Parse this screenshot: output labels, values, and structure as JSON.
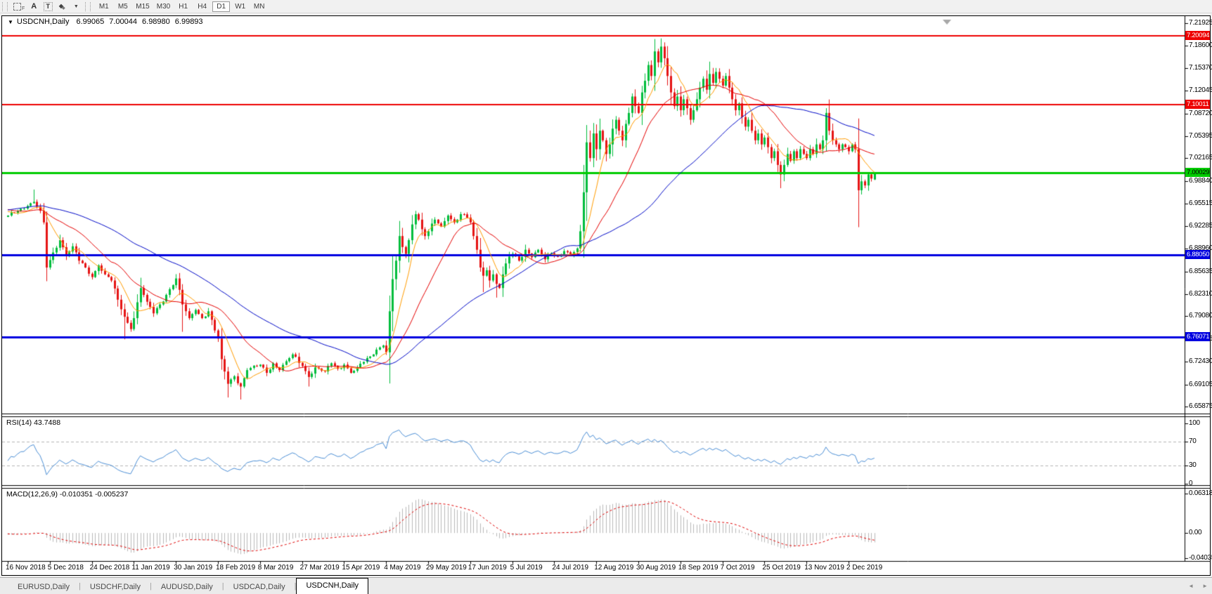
{
  "toolbar": {
    "tools": [
      {
        "name": "chart-window-icon",
        "kind": "dashbox",
        "glyph": "F"
      },
      {
        "name": "cursor-tool-icon",
        "kind": "glyph",
        "glyph": "A"
      },
      {
        "name": "text-label-tool-icon",
        "kind": "boxglyph",
        "glyph": "T"
      },
      {
        "name": "arrows-tool-icon",
        "kind": "diamonds",
        "glyph": "◆"
      },
      {
        "name": "arrows-dropdown-caret-icon",
        "kind": "caret",
        "glyph": "▼"
      }
    ],
    "timeframes": [
      {
        "label": "M1",
        "active": false
      },
      {
        "label": "M5",
        "active": false
      },
      {
        "label": "M15",
        "active": false
      },
      {
        "label": "M30",
        "active": false
      },
      {
        "label": "H1",
        "active": false
      },
      {
        "label": "H4",
        "active": false
      },
      {
        "label": "D1",
        "active": true
      },
      {
        "label": "W1",
        "active": false
      },
      {
        "label": "MN",
        "active": false
      }
    ]
  },
  "chart": {
    "title": {
      "dropdown_glyph": "▼",
      "symbol": "USDCNH,Daily",
      "open": "6.99065",
      "high": "7.00044",
      "low": "6.98980",
      "close": "6.99893"
    },
    "y_axis_ticks": [
      "7.21925",
      "7.18600",
      "7.15370",
      "7.12045",
      "7.08720",
      "7.05395",
      "7.02165",
      "6.98840",
      "6.95515",
      "6.92285",
      "6.88960",
      "6.85635",
      "6.82310",
      "6.79080",
      "6.75755",
      "6.72430",
      "6.69105",
      "6.65875"
    ],
    "x_axis_dates": [
      "16 Nov 2018",
      "5 Dec 2018",
      "24 Dec 2018",
      "11 Jan 2019",
      "30 Jan 2019",
      "18 Feb 2019",
      "8 Mar 2019",
      "27 Mar 2019",
      "15 Apr 2019",
      "4 May 2019",
      "29 May 2019",
      "17 Jun 2019",
      "5 Jul 2019",
      "24 Jul 2019",
      "12 Aug 2019",
      "30 Aug 2019",
      "18 Sep 2019",
      "7 Oct 2019",
      "25 Oct 2019",
      "13 Nov 2019",
      "2 Dec 2019"
    ],
    "levels": [
      {
        "price": 7.20094,
        "label": "7.20094",
        "color": "#ee0000",
        "text_color": "#ffffff",
        "thickness": 2
      },
      {
        "price": 7.10011,
        "label": "7.10011",
        "color": "#ee0000",
        "text_color": "#ffffff",
        "thickness": 2
      },
      {
        "price": 7.00029,
        "label": "7.00029",
        "color": "#00cc00",
        "text_color": "#000000",
        "thickness": 3
      },
      {
        "price": 6.8805,
        "label": "6.88050",
        "color": "#0000e0",
        "text_color": "#ffffff",
        "thickness": 3
      },
      {
        "price": 6.76071,
        "label": "6.76071",
        "color": "#0000e0",
        "text_color": "#ffffff",
        "thickness": 3
      }
    ],
    "shift_marker_color": "#a8a8a8"
  },
  "rsi": {
    "label": "RSI(14) 43.7488",
    "ticks": [
      "100",
      "70",
      "30",
      "0"
    ],
    "guide_levels": [
      70,
      30
    ],
    "line_color": "#4c8fd6",
    "guide_color": "#b5b5b5"
  },
  "macd": {
    "label": "MACD(12,26,9) -0.010351 -0.005237",
    "ticks": [
      "0.063184",
      "0.00",
      "-0.040355"
    ],
    "histogram_color": "#b9b9b9",
    "signal_color": "#e00000"
  },
  "chart_data": {
    "type": "candlestick",
    "symbol": "USDCNH",
    "timeframe": "Daily",
    "title_ohlc": {
      "open": 6.99065,
      "high": 7.00044,
      "low": 6.9898,
      "close": 6.99893
    },
    "y_range": [
      6.65875,
      7.21925
    ],
    "rsi_range": [
      0,
      100
    ],
    "macd_range": [
      -0.040355,
      0.063184
    ],
    "bars": 269,
    "bars_per_tick": 13,
    "up_color": "#00bd3c",
    "down_color": "#e51414",
    "moving_averages": [
      {
        "period": 8,
        "color": "#ff9c00"
      },
      {
        "period": 21,
        "color": "#e60000"
      },
      {
        "period": 55,
        "color": "#0008c8"
      }
    ],
    "rsi_period": 14,
    "macd_params": [
      12,
      26,
      9
    ],
    "levels": [
      7.20094,
      7.10011,
      7.00029,
      6.8805,
      6.76071
    ],
    "close_anchors": [
      [
        -60,
        6.885
      ],
      [
        -48,
        6.92
      ],
      [
        -36,
        6.958
      ],
      [
        -24,
        6.972
      ],
      [
        -12,
        6.94
      ],
      [
        -6,
        6.952
      ],
      [
        -1,
        6.936
      ],
      [
        0,
        6.938
      ],
      [
        3,
        6.945
      ],
      [
        6,
        6.952
      ],
      [
        8,
        6.958
      ],
      [
        10,
        6.945
      ],
      [
        11,
        6.928
      ],
      [
        12,
        6.862
      ],
      [
        14,
        6.884
      ],
      [
        16,
        6.902
      ],
      [
        18,
        6.88
      ],
      [
        20,
        6.893
      ],
      [
        22,
        6.872
      ],
      [
        24,
        6.862
      ],
      [
        26,
        6.848
      ],
      [
        28,
        6.865
      ],
      [
        30,
        6.852
      ],
      [
        32,
        6.843
      ],
      [
        34,
        6.815
      ],
      [
        36,
        6.79
      ],
      [
        38,
        6.772
      ],
      [
        39,
        6.788
      ],
      [
        41,
        6.832
      ],
      [
        43,
        6.812
      ],
      [
        45,
        6.795
      ],
      [
        47,
        6.808
      ],
      [
        49,
        6.822
      ],
      [
        52,
        6.846
      ],
      [
        54,
        6.808
      ],
      [
        56,
        6.788
      ],
      [
        58,
        6.8
      ],
      [
        60,
        6.788
      ],
      [
        62,
        6.798
      ],
      [
        64,
        6.77
      ],
      [
        65,
        6.758
      ],
      [
        66,
        6.728
      ],
      [
        68,
        6.692
      ],
      [
        70,
        6.703
      ],
      [
        72,
        6.688
      ],
      [
        74,
        6.712
      ],
      [
        78,
        6.72
      ],
      [
        80,
        6.708
      ],
      [
        82,
        6.722
      ],
      [
        84,
        6.712
      ],
      [
        86,
        6.725
      ],
      [
        88,
        6.735
      ],
      [
        91,
        6.718
      ],
      [
        93,
        6.702
      ],
      [
        95,
        6.716
      ],
      [
        98,
        6.71
      ],
      [
        100,
        6.722
      ],
      [
        102,
        6.714
      ],
      [
        104,
        6.72
      ],
      [
        106,
        6.708
      ],
      [
        108,
        6.716
      ],
      [
        110,
        6.724
      ],
      [
        112,
        6.732
      ],
      [
        114,
        6.742
      ],
      [
        116,
        6.748
      ],
      [
        117,
        6.738
      ],
      [
        118,
        6.798
      ],
      [
        119,
        6.845
      ],
      [
        120,
        6.872
      ],
      [
        121,
        6.908
      ],
      [
        122,
        6.892
      ],
      [
        123,
        6.882
      ],
      [
        124,
        6.902
      ],
      [
        125,
        6.925
      ],
      [
        126,
        6.94
      ],
      [
        127,
        6.932
      ],
      [
        128,
        6.918
      ],
      [
        129,
        6.908
      ],
      [
        130,
        6.915
      ],
      [
        132,
        6.932
      ],
      [
        134,
        6.922
      ],
      [
        136,
        6.938
      ],
      [
        138,
        6.928
      ],
      [
        140,
        6.94
      ],
      [
        142,
        6.935
      ],
      [
        143,
        6.928
      ],
      [
        144,
        6.908
      ],
      [
        145,
        6.888
      ],
      [
        146,
        6.862
      ],
      [
        147,
        6.85
      ],
      [
        148,
        6.858
      ],
      [
        149,
        6.843
      ],
      [
        150,
        6.852
      ],
      [
        151,
        6.838
      ],
      [
        152,
        6.832
      ],
      [
        153,
        6.852
      ],
      [
        154,
        6.868
      ],
      [
        155,
        6.878
      ],
      [
        156,
        6.882
      ],
      [
        158,
        6.872
      ],
      [
        160,
        6.888
      ],
      [
        162,
        6.877
      ],
      [
        164,
        6.888
      ],
      [
        166,
        6.874
      ],
      [
        168,
        6.883
      ],
      [
        170,
        6.878
      ],
      [
        172,
        6.886
      ],
      [
        174,
        6.88
      ],
      [
        176,
        6.89
      ],
      [
        177,
        6.915
      ],
      [
        178,
        6.972
      ],
      [
        179,
        7.045
      ],
      [
        180,
        7.022
      ],
      [
        181,
        7.058
      ],
      [
        182,
        7.035
      ],
      [
        183,
        7.062
      ],
      [
        184,
        7.048
      ],
      [
        185,
        7.028
      ],
      [
        186,
        7.042
      ],
      [
        187,
        7.065
      ],
      [
        188,
        7.078
      ],
      [
        189,
        7.062
      ],
      [
        190,
        7.048
      ],
      [
        191,
        7.072
      ],
      [
        192,
        7.088
      ],
      [
        193,
        7.112
      ],
      [
        194,
        7.098
      ],
      [
        195,
        7.088
      ],
      [
        196,
        7.118
      ],
      [
        197,
        7.135
      ],
      [
        198,
        7.158
      ],
      [
        199,
        7.142
      ],
      [
        200,
        7.178
      ],
      [
        201,
        7.162
      ],
      [
        202,
        7.185
      ],
      [
        203,
        7.168
      ],
      [
        204,
        7.142
      ],
      [
        205,
        7.118
      ],
      [
        206,
        7.098
      ],
      [
        207,
        7.112
      ],
      [
        208,
        7.092
      ],
      [
        209,
        7.108
      ],
      [
        210,
        7.095
      ],
      [
        211,
        7.078
      ],
      [
        212,
        7.092
      ],
      [
        213,
        7.108
      ],
      [
        214,
        7.125
      ],
      [
        215,
        7.138
      ],
      [
        216,
        7.122
      ],
      [
        217,
        7.145
      ],
      [
        218,
        7.132
      ],
      [
        219,
        7.148
      ],
      [
        220,
        7.138
      ],
      [
        221,
        7.128
      ],
      [
        222,
        7.142
      ],
      [
        223,
        7.125
      ],
      [
        224,
        7.108
      ],
      [
        225,
        7.092
      ],
      [
        226,
        7.102
      ],
      [
        227,
        7.082
      ],
      [
        228,
        7.068
      ],
      [
        229,
        7.078
      ],
      [
        230,
        7.062
      ],
      [
        231,
        7.048
      ],
      [
        232,
        7.058
      ],
      [
        233,
        7.042
      ],
      [
        234,
        7.052
      ],
      [
        235,
        7.038
      ],
      [
        236,
        7.022
      ],
      [
        237,
        7.032
      ],
      [
        238,
        7.012
      ],
      [
        239,
        6.998
      ],
      [
        240,
        7.012
      ],
      [
        241,
        7.028
      ],
      [
        242,
        7.018
      ],
      [
        243,
        7.032
      ],
      [
        244,
        7.022
      ],
      [
        245,
        7.035
      ],
      [
        246,
        7.028
      ],
      [
        247,
        7.022
      ],
      [
        248,
        7.035
      ],
      [
        249,
        7.028
      ],
      [
        250,
        7.042
      ],
      [
        251,
        7.035
      ],
      [
        252,
        7.048
      ],
      [
        253,
        7.088
      ],
      [
        254,
        7.062
      ],
      [
        255,
        7.048
      ],
      [
        256,
        7.042
      ],
      [
        257,
        7.035
      ],
      [
        258,
        7.042
      ],
      [
        259,
        7.038
      ],
      [
        260,
        7.032
      ],
      [
        261,
        7.042
      ],
      [
        262,
        7.035
      ],
      [
        263,
        6.975
      ],
      [
        264,
        6.988
      ],
      [
        265,
        6.982
      ],
      [
        266,
        6.998
      ],
      [
        267,
        6.992
      ],
      [
        268,
        6.99893
      ]
    ],
    "wick_overrides": [
      {
        "i": 8,
        "h": 6.976
      },
      {
        "i": 12,
        "l": 6.842
      },
      {
        "i": 36,
        "l": 6.757
      },
      {
        "i": 54,
        "l": 6.768
      },
      {
        "i": 68,
        "l": 6.672
      },
      {
        "i": 72,
        "l": 6.669
      },
      {
        "i": 93,
        "l": 6.688
      },
      {
        "i": 147,
        "l": 6.826
      },
      {
        "i": 151,
        "l": 6.818
      },
      {
        "i": 178,
        "h": 7.012
      },
      {
        "i": 200,
        "h": 7.196
      },
      {
        "i": 202,
        "h": 7.197
      },
      {
        "i": 217,
        "h": 7.163
      },
      {
        "i": 239,
        "l": 6.978
      },
      {
        "i": 253,
        "h": 7.095
      },
      {
        "i": 263,
        "l": 6.921
      },
      {
        "i": 268,
        "o": 6.99065,
        "h": 7.00044,
        "l": 6.9898,
        "c": 6.99893
      }
    ]
  },
  "tabs": {
    "items": [
      {
        "label": "EURUSD,Daily",
        "active": false
      },
      {
        "label": "USDCHF,Daily",
        "active": false
      },
      {
        "label": "AUDUSD,Daily",
        "active": false
      },
      {
        "label": "USDCAD,Daily",
        "active": false
      },
      {
        "label": "USDCNH,Daily",
        "active": true
      }
    ],
    "scroll_left": "◄",
    "scroll_right": "►"
  }
}
